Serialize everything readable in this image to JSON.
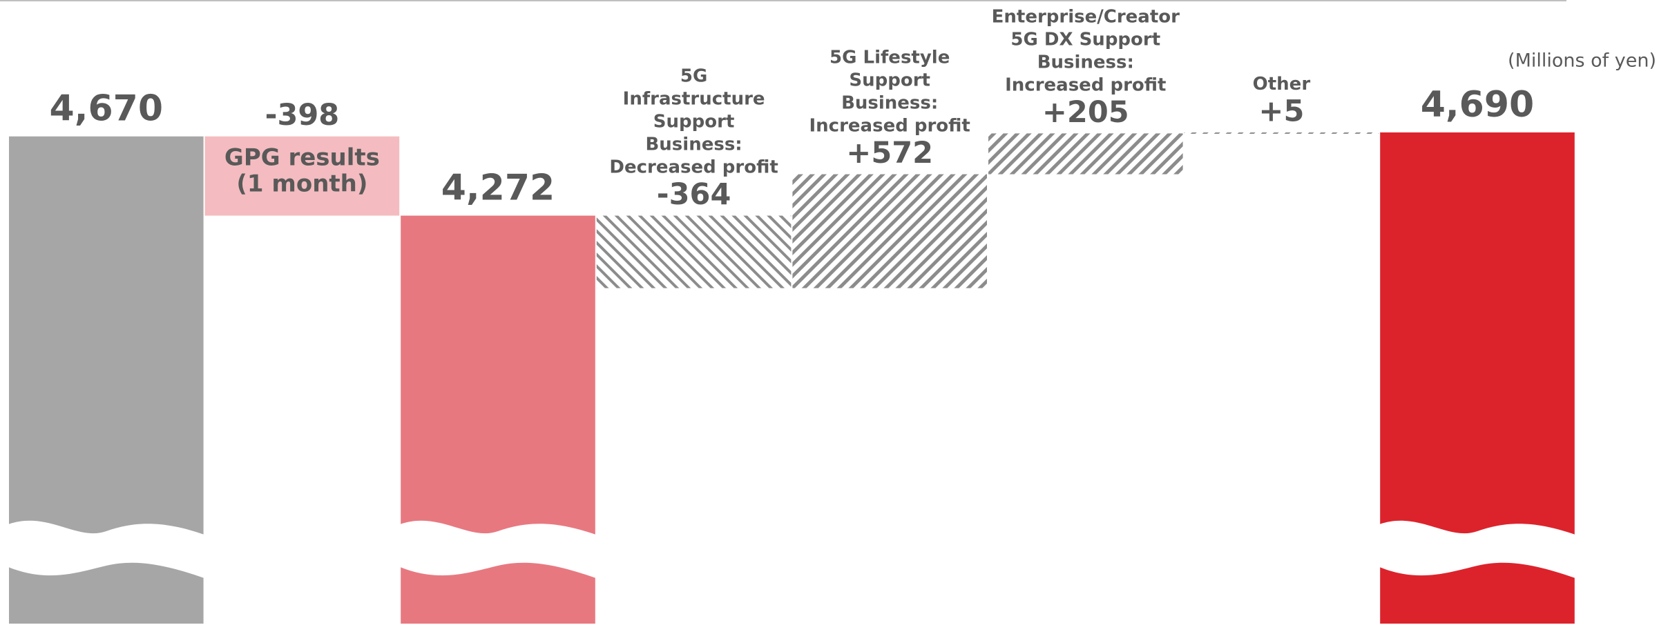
{
  "chart_data": {
    "type": "waterfall",
    "unit_label": "(Millions of yen)",
    "categories": [
      null,
      "GPG results\n(1 month)",
      null,
      "5G\nInfrastructure\nSupport\nBusiness:\nDecreased profit",
      "5G Lifestyle\nSupport\nBusiness:\nIncreased profit",
      "Enterprise/Creator\n5G DX Support\nBusiness:\nIncreased profit",
      "Other",
      null
    ],
    "values": [
      4670,
      -398,
      4272,
      -364,
      572,
      205,
      5,
      4690
    ],
    "value_labels": [
      "4,670",
      "-398",
      "4,272",
      "-364",
      "+572",
      "+205",
      "+5",
      "4,690"
    ],
    "is_total": [
      true,
      false,
      true,
      false,
      false,
      false,
      false,
      true
    ],
    "colors": [
      "#a6a6a6",
      "#f4bcc0",
      "#e87880",
      "#8c8c8c",
      "#8c8c8c",
      "#8c8c8c",
      "#8c8c8c",
      "#dc232c"
    ],
    "patterns": [
      null,
      null,
      null,
      "backslash",
      "slash",
      "slash",
      "slash",
      null
    ],
    "ylim": [
      2223,
      5355
    ],
    "axis_break": true
  }
}
